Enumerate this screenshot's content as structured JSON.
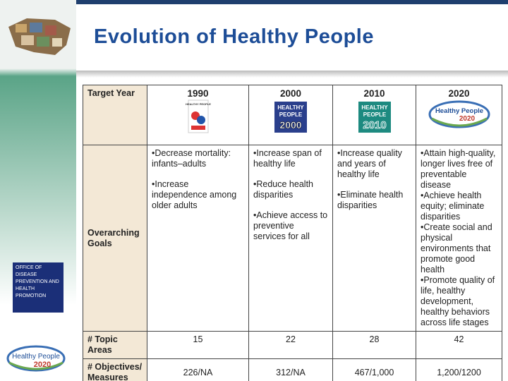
{
  "header": {
    "title": "Evolution of Healthy People"
  },
  "sidebar": {
    "odphp": [
      "OFFICE OF",
      "DISEASE",
      "PREVENTION AND",
      "HEALTH",
      "PROMOTION"
    ],
    "hp2020": [
      "Healthy People",
      "2020"
    ]
  },
  "table": {
    "columns": [
      "Target Year",
      "1990",
      "2000",
      "2010",
      "2020"
    ],
    "logos": {
      "hp1990": "HEALTHY PEOPLE",
      "hp2000": [
        "HEALTHY",
        "PEOPLE",
        "2000"
      ],
      "hp2010": [
        "HEALTHY",
        "PEOPLE",
        "2010"
      ],
      "hp2020": [
        "Healthy People",
        "2020"
      ]
    },
    "rows": [
      {
        "label": "Overarching Goals",
        "cells": [
          [
            "•Decrease mortality: infants–adults",
            "•Increase independence among older adults"
          ],
          [
            "•Increase span of healthy life",
            "•Reduce health disparities",
            "•Achieve access to preventive services for all"
          ],
          [
            "•Increase quality and years of healthy life",
            "•Eliminate health disparities"
          ],
          [
            "•Attain high-quality, longer lives free of preventable disease",
            "•Achieve health equity; eliminate disparities",
            "•Create social and physical environments that promote good health",
            "•Promote quality of life, healthy development, healthy behaviors across life stages"
          ]
        ]
      },
      {
        "label": "# Topic Areas",
        "cells": [
          15,
          22,
          28,
          42
        ]
      },
      {
        "label": "# Objectives/ Measures",
        "cells": [
          "226/NA",
          "312/NA",
          "467/1,000",
          "1,200/1200"
        ]
      }
    ]
  }
}
